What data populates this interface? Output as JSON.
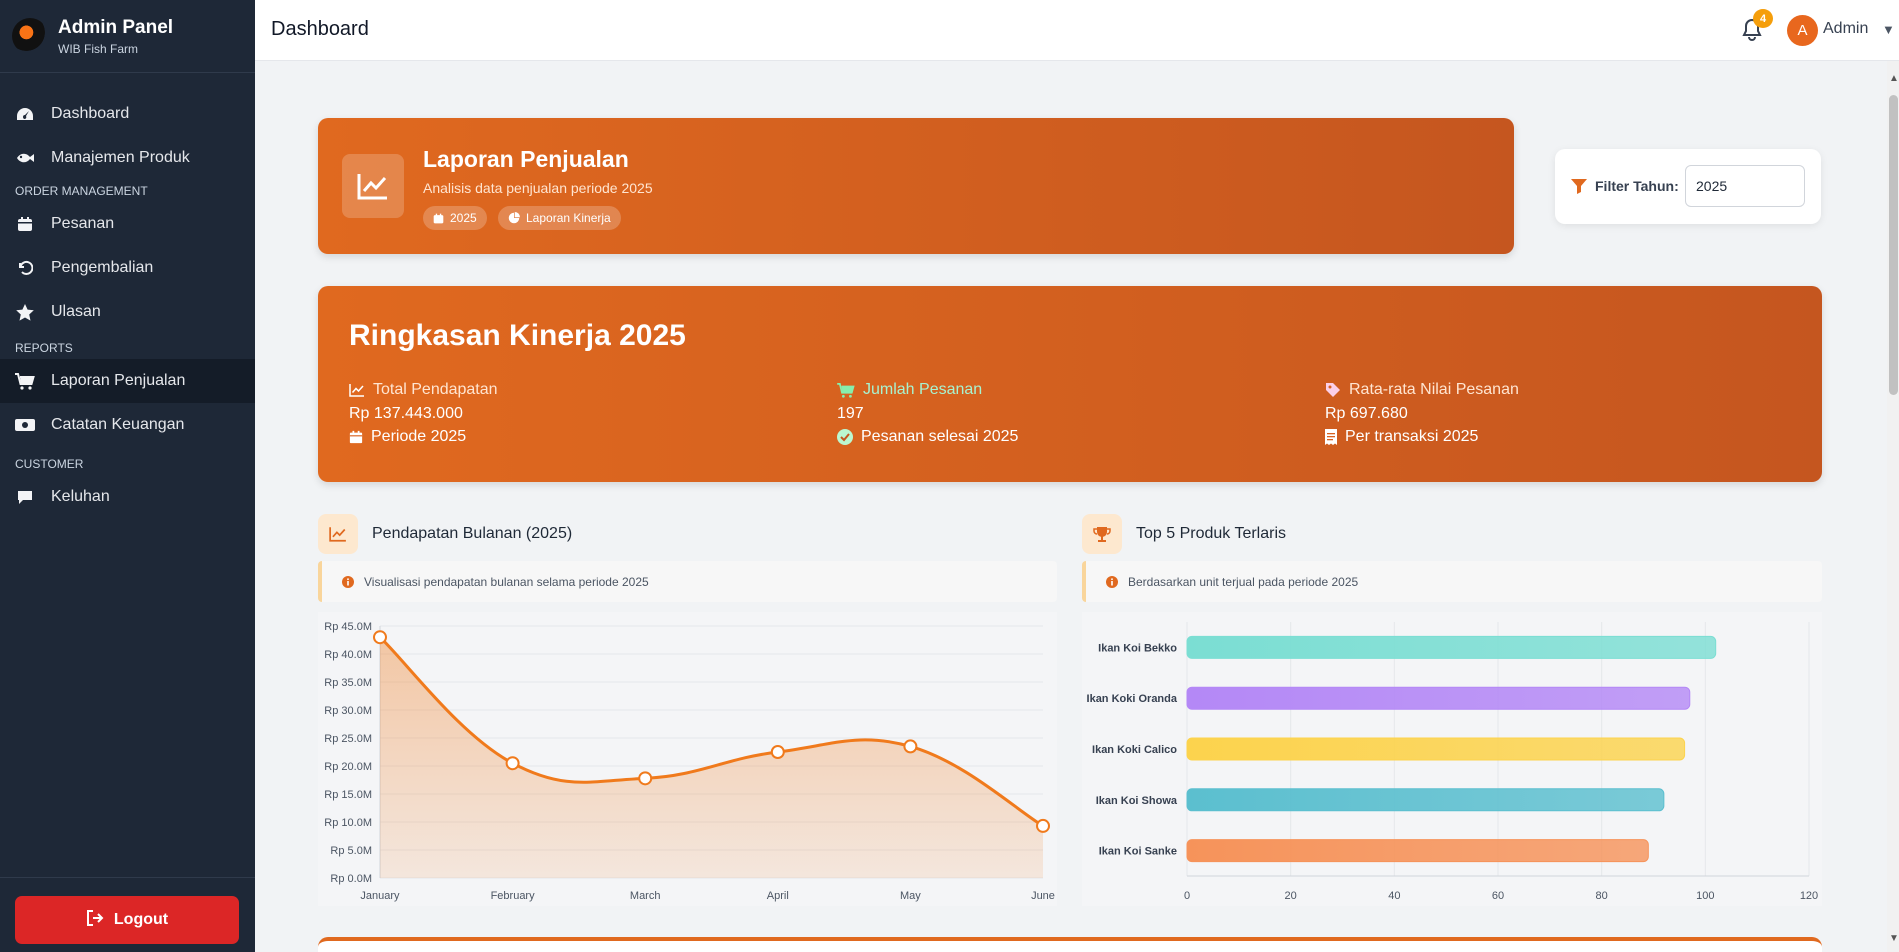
{
  "sidebar": {
    "brand_title": "Admin Panel",
    "brand_sub": "WIB Fish Farm",
    "items": [
      {
        "label": "Dashboard",
        "icon": "gauge-icon"
      },
      {
        "label": "Manajemen Produk",
        "icon": "fish-icon"
      },
      {
        "label": "Pesanan",
        "icon": "calendar-icon"
      },
      {
        "label": "Pengembalian",
        "icon": "undo-icon"
      },
      {
        "label": "Ulasan",
        "icon": "star-icon"
      },
      {
        "label": "Laporan Penjualan",
        "icon": "cart-icon"
      },
      {
        "label": "Catatan Keuangan",
        "icon": "money-icon"
      },
      {
        "label": "Keluhan",
        "icon": "comment-icon"
      }
    ],
    "sections": {
      "order": "ORDER MANAGEMENT",
      "reports": "REPORTS",
      "customer": "CUSTOMER"
    },
    "logout": "Logout",
    "active_item": "Laporan Penjualan"
  },
  "topbar": {
    "title": "Dashboard",
    "notification_count": "4",
    "avatar_initial": "A",
    "user": "Admin"
  },
  "hero": {
    "title": "Laporan Penjualan",
    "subtitle": "Analisis data penjualan periode 2025",
    "pill_year": "2025",
    "pill_report": "Laporan Kinerja"
  },
  "filter": {
    "label": "Filter Tahun:",
    "value": "2025"
  },
  "summary": {
    "title": "Ringkasan Kinerja 2025",
    "metrics": [
      {
        "label": "Total Pendapatan",
        "value": "Rp 137.443.000",
        "note": "Periode 2025"
      },
      {
        "label": "Jumlah Pesanan",
        "value": "197",
        "note": "Pesanan selesai 2025"
      },
      {
        "label": "Rata-rata Nilai Pesanan",
        "value": "Rp 697.680",
        "note": "Per transaksi 2025"
      }
    ]
  },
  "revenue_panel": {
    "title": "Pendapatan Bulanan (2025)",
    "note": "Visualisasi pendapatan bulanan selama periode 2025"
  },
  "top_panel": {
    "title": "Top 5 Produk Terlaris",
    "note": "Berdasarkan unit terjual pada periode 2025"
  },
  "colors": {
    "accent": "#e0691f",
    "sidebar": "#1e2837",
    "logout": "#dc2626"
  },
  "chart_data": [
    {
      "type": "area",
      "x": [
        "January",
        "February",
        "March",
        "April",
        "May",
        "June"
      ],
      "values": [
        43.0,
        20.5,
        17.8,
        22.5,
        23.5,
        9.3
      ],
      "unit": "M",
      "ylim": [
        0,
        45
      ],
      "y_ticks": [
        "Rp 0.0M",
        "Rp 5.0M",
        "Rp 10.0M",
        "Rp 15.0M",
        "Rp 20.0M",
        "Rp 25.0M",
        "Rp 30.0M",
        "Rp 35.0M",
        "Rp 40.0M",
        "Rp 45.0M"
      ],
      "color": "#f07a1c"
    },
    {
      "type": "bar",
      "orientation": "horizontal",
      "categories": [
        "Ikan Koi Bekko",
        "Ikan Koki Oranda",
        "Ikan Koki Calico",
        "Ikan Koi Showa",
        "Ikan Koi Sanke"
      ],
      "values": [
        102,
        97,
        96,
        92,
        89
      ],
      "xlim": [
        0,
        120
      ],
      "x_ticks": [
        "0",
        "20",
        "40",
        "60",
        "80",
        "100",
        "120"
      ],
      "colors": [
        "#7bded3",
        "#b488f6",
        "#fcd34d",
        "#5bbfcf",
        "#f6935a"
      ]
    }
  ]
}
